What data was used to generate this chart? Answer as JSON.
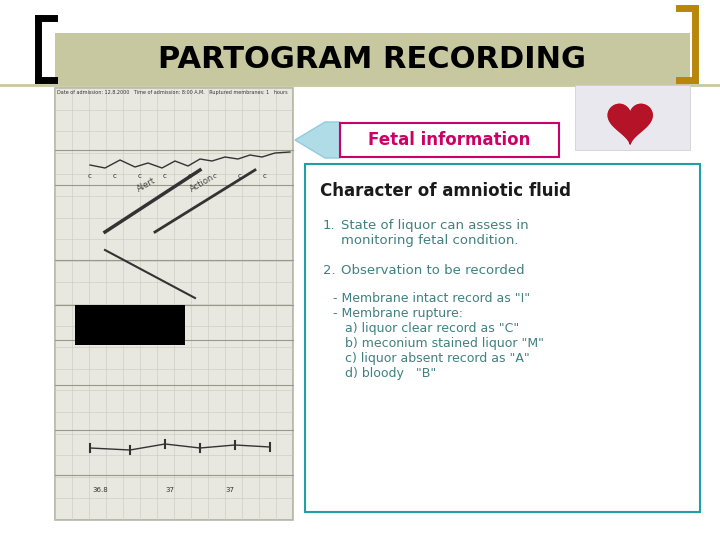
{
  "title": "PARTOGRAM RECORDING",
  "title_bg_color": "#c8c8a0",
  "title_text_color": "#000000",
  "title_fontsize": 22,
  "slide_bg_color": "#ffffff",
  "black_bracket_color": "#000000",
  "gold_bracket_color": "#b8860b",
  "thin_line_color": "#c8c8a0",
  "arrow_label": "Fetal information",
  "arrow_label_color": "#cc0066",
  "arrow_label_bg": "#ffffff",
  "arrow_label_border": "#cc0066",
  "arrow_fill": "#b0dce8",
  "content_box_border": "#20a0a0",
  "content_box_bg": "#ffffff",
  "content_title": "Character of amniotic fluid",
  "content_title_color": "#1a1a1a",
  "content_title_fontsize": 12,
  "item1_num": "1.",
  "item1_line1": "State of liquor can assess in",
  "item1_line2": "monitoring fetal condition.",
  "item2_num": "2.",
  "item2_text": "Observation to be recorded",
  "subitems": [
    "- Membrane intact record as \"I\"",
    "- Membrane rupture:",
    "   a) liquor clear record as \"C\"",
    "   b) meconium stained liquor \"M\"",
    "   c) liquor absent record as \"A\"",
    "   d) bloody   \"B\""
  ],
  "item_color": "#408080",
  "item_fontsize": 9.5,
  "subitem_color": "#408080",
  "subitem_fontsize": 9,
  "partogram_bg": "#e8e8e0",
  "partogram_border": "#b0b0a0",
  "partogram_grid": "#c8c8c0",
  "heart_color": "#cc2244"
}
